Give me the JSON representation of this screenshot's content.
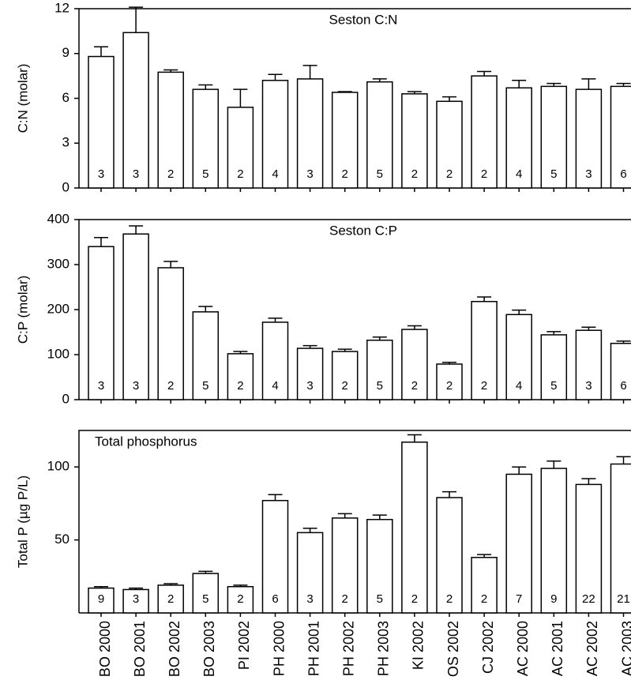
{
  "chart_data": [
    {
      "type": "bar",
      "title": "Seston C:N",
      "y_label": "C:N (molar)",
      "ylim": [
        0,
        12
      ],
      "yticks": [
        0,
        3,
        6,
        9,
        12
      ],
      "values": [
        8.8,
        10.4,
        7.75,
        6.6,
        5.4,
        7.2,
        7.3,
        6.4,
        7.1,
        6.3,
        5.8,
        7.5,
        6.7,
        6.8,
        6.6,
        6.8
      ],
      "errors": [
        0.65,
        1.7,
        0.15,
        0.3,
        1.2,
        0.4,
        0.9,
        0.05,
        0.2,
        0.15,
        0.3,
        0.3,
        0.5,
        0.2,
        0.7,
        0.2
      ],
      "sample_sizes": [
        3,
        3,
        2,
        5,
        2,
        4,
        3,
        2,
        5,
        2,
        2,
        2,
        4,
        5,
        3,
        6
      ]
    },
    {
      "type": "bar",
      "title": "Seston C:P",
      "y_label": "C:P (molar)",
      "ylim": [
        0,
        400
      ],
      "yticks": [
        0,
        100,
        200,
        300,
        400
      ],
      "values": [
        340,
        368,
        293,
        195,
        102,
        172,
        114,
        107,
        132,
        156,
        79,
        218,
        189,
        144,
        154,
        125
      ],
      "errors": [
        20,
        18,
        14,
        12,
        5,
        9,
        6,
        5,
        7,
        8,
        4,
        10,
        10,
        7,
        7,
        5
      ],
      "sample_sizes": [
        3,
        3,
        2,
        5,
        2,
        4,
        3,
        2,
        5,
        2,
        2,
        2,
        4,
        5,
        3,
        6
      ]
    },
    {
      "type": "bar",
      "title": "Total phosphorus",
      "y_label": "Total P (µg P/L)",
      "ylim": [
        0,
        125
      ],
      "yticks": [
        50,
        100
      ],
      "categories": [
        "BO 2000",
        "BO 2001",
        "BO 2002",
        "BO 2003",
        "PI 2002",
        "PH 2000",
        "PH 2001",
        "PH 2002",
        "PH 2003",
        "KI 2002",
        "OS 2002",
        "CJ 2002",
        "AC 2000",
        "AC 2001",
        "AC 2002",
        "AC 2003"
      ],
      "values": [
        17,
        16,
        19,
        27,
        18,
        77,
        55,
        65,
        64,
        117,
        79,
        38,
        95,
        99,
        88,
        102
      ],
      "errors": [
        1,
        1,
        1,
        1.5,
        1,
        4,
        3,
        3,
        3,
        5,
        4,
        2,
        5,
        5,
        4,
        5
      ],
      "sample_sizes": [
        9,
        3,
        2,
        5,
        2,
        6,
        3,
        2,
        5,
        2,
        2,
        2,
        7,
        9,
        22,
        21
      ]
    }
  ]
}
